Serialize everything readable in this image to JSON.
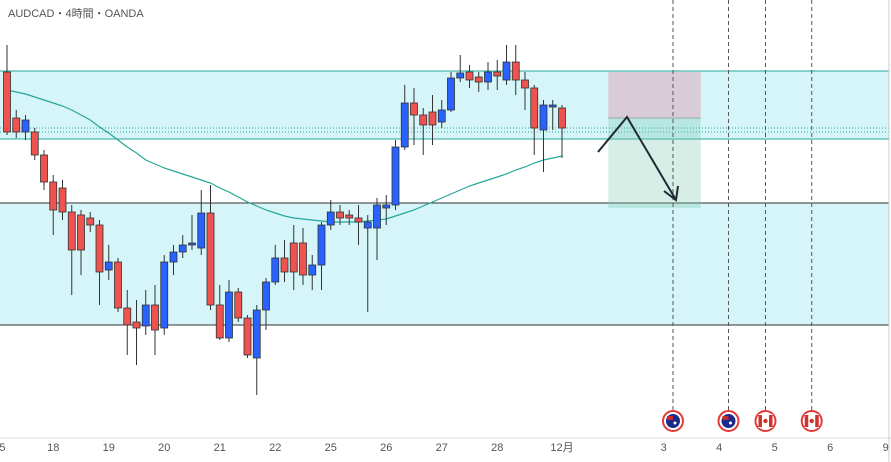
{
  "chart_data": {
    "type": "candlestick",
    "title": "AUDCAD・4時間・OANDA",
    "up_color": "#2962ff",
    "down_color": "#ef5350",
    "xlim": [
      -0.757,
      95.57
    ],
    "ylim": [
      0.886,
      0.93
    ],
    "xticks": [
      {
        "value": -0.5,
        "label": "5"
      },
      {
        "value": 5,
        "label": "18"
      },
      {
        "value": 11,
        "label": "19"
      },
      {
        "value": 17,
        "label": "20"
      },
      {
        "value": 23,
        "label": "21"
      },
      {
        "value": 29,
        "label": "22"
      },
      {
        "value": 35,
        "label": "25"
      },
      {
        "value": 41,
        "label": "26"
      },
      {
        "value": 47,
        "label": "27"
      },
      {
        "value": 53,
        "label": "28"
      },
      {
        "value": 60,
        "label": "12月"
      },
      {
        "value": 71,
        "label": "3"
      },
      {
        "value": 77,
        "label": "4"
      },
      {
        "value": 83,
        "label": "5"
      },
      {
        "value": 89,
        "label": "6"
      },
      {
        "value": 95,
        "label": "9"
      }
    ],
    "ohlc": [
      [
        0.9228,
        0.9255,
        0.9165,
        0.9168
      ],
      [
        0.9182,
        0.919,
        0.9162,
        0.9168
      ],
      [
        0.9168,
        0.9185,
        0.916,
        0.918
      ],
      [
        0.9168,
        0.9172,
        0.914,
        0.9145
      ],
      [
        0.9145,
        0.915,
        0.911,
        0.9118
      ],
      [
        0.9118,
        0.9125,
        0.9065,
        0.909
      ],
      [
        0.9112,
        0.912,
        0.908,
        0.9088
      ],
      [
        0.9088,
        0.9095,
        0.9005,
        0.905
      ],
      [
        0.9085,
        0.909,
        0.9025,
        0.905
      ],
      [
        0.9082,
        0.9088,
        0.9068,
        0.9075
      ],
      [
        0.9075,
        0.908,
        0.8995,
        0.9028
      ],
      [
        0.903,
        0.9055,
        0.902,
        0.9038
      ],
      [
        0.9038,
        0.9042,
        0.8988,
        0.8992
      ],
      [
        0.8992,
        0.901,
        0.8945,
        0.8975
      ],
      [
        0.8978,
        0.9,
        0.8935,
        0.8972
      ],
      [
        0.8974,
        0.901,
        0.8965,
        0.8995
      ],
      [
        0.8995,
        0.9015,
        0.8945,
        0.897
      ],
      [
        0.8972,
        0.9045,
        0.8965,
        0.9038
      ],
      [
        0.9038,
        0.9055,
        0.9025,
        0.9048
      ],
      [
        0.9048,
        0.9065,
        0.9042,
        0.9055
      ],
      [
        0.9055,
        0.9085,
        0.905,
        0.9057
      ],
      [
        0.9052,
        0.911,
        0.9045,
        0.9087
      ],
      [
        0.9087,
        0.9115,
        0.899,
        0.8995
      ],
      [
        0.8995,
        0.9015,
        0.896,
        0.8962
      ],
      [
        0.8962,
        0.902,
        0.8958,
        0.9008
      ],
      [
        0.9008,
        0.9012,
        0.8978,
        0.8982
      ],
      [
        0.8982,
        0.8985,
        0.8942,
        0.8945
      ],
      [
        0.8942,
        0.8995,
        0.8905,
        0.899
      ],
      [
        0.899,
        0.9022,
        0.897,
        0.9018
      ],
      [
        0.9018,
        0.9055,
        0.9015,
        0.9042
      ],
      [
        0.9042,
        0.906,
        0.9018,
        0.9028
      ],
      [
        0.9057,
        0.9075,
        0.901,
        0.9028
      ],
      [
        0.9057,
        0.9072,
        0.9015,
        0.9025
      ],
      [
        0.9025,
        0.9045,
        0.901,
        0.9035
      ],
      [
        0.9035,
        0.9078,
        0.901,
        0.9075
      ],
      [
        0.9075,
        0.91,
        0.907,
        0.9088
      ],
      [
        0.9088,
        0.9095,
        0.9075,
        0.9082
      ],
      [
        0.9085,
        0.909,
        0.9075,
        0.9082
      ],
      [
        0.9082,
        0.9095,
        0.9055,
        0.9078
      ],
      [
        0.9072,
        0.9085,
        0.8988,
        0.9078
      ],
      [
        0.9072,
        0.9102,
        0.904,
        0.9095
      ],
      [
        0.9092,
        0.9105,
        0.9075,
        0.9095
      ],
      [
        0.9095,
        0.916,
        0.909,
        0.9153
      ],
      [
        0.9153,
        0.9215,
        0.915,
        0.9197
      ],
      [
        0.9197,
        0.9212,
        0.9155,
        0.9185
      ],
      [
        0.9185,
        0.9192,
        0.9145,
        0.9175
      ],
      [
        0.9188,
        0.9205,
        0.9155,
        0.9175
      ],
      [
        0.9178,
        0.92,
        0.9172,
        0.919
      ],
      [
        0.919,
        0.9228,
        0.9188,
        0.9222
      ],
      [
        0.9222,
        0.9245,
        0.9218,
        0.9227
      ],
      [
        0.9228,
        0.9235,
        0.9212,
        0.922
      ],
      [
        0.9223,
        0.9228,
        0.9208,
        0.9218
      ],
      [
        0.9218,
        0.9238,
        0.921,
        0.9228
      ],
      [
        0.9228,
        0.924,
        0.921,
        0.9224
      ],
      [
        0.922,
        0.9255,
        0.9215,
        0.9238
      ],
      [
        0.9238,
        0.9255,
        0.9205,
        0.922
      ],
      [
        0.922,
        0.9228,
        0.919,
        0.9212
      ],
      [
        0.9212,
        0.9215,
        0.9145,
        0.9172
      ],
      [
        0.917,
        0.92,
        0.9128,
        0.9195
      ],
      [
        0.9193,
        0.92,
        0.917,
        0.9195
      ],
      [
        0.9192,
        0.9195,
        0.9142,
        0.9172
      ]
    ],
    "ma": {
      "color": "#26a69a",
      "values": [
        0.921,
        0.9208,
        0.9206,
        0.9203,
        0.92,
        0.9197,
        0.9194,
        0.919,
        0.9185,
        0.918,
        0.9173,
        0.9167,
        0.916,
        0.9153,
        0.9147,
        0.914,
        0.9136,
        0.9132,
        0.9129,
        0.9126,
        0.9123,
        0.912,
        0.9117,
        0.9112,
        0.9108,
        0.9103,
        0.9098,
        0.9094,
        0.909,
        0.9087,
        0.9084,
        0.9082,
        0.9081,
        0.908,
        0.9079,
        0.9078,
        0.9078,
        0.9078,
        0.9078,
        0.9079,
        0.908,
        0.9081,
        0.9084,
        0.9087,
        0.909,
        0.9094,
        0.9098,
        0.9102,
        0.9106,
        0.911,
        0.9114,
        0.9117,
        0.912,
        0.9123,
        0.9126,
        0.913,
        0.9133,
        0.9137,
        0.914,
        0.9142,
        0.9144
      ]
    },
    "zones": [
      {
        "top": 0.9229,
        "bottom": 0.9161,
        "fill": "#d5f5f9",
        "border": "#26a69a"
      },
      {
        "top": 0.9097,
        "bottom": 0.8975,
        "fill": "#d5f5f9",
        "border": "#333333"
      }
    ],
    "dotted_levels": [
      0.9172,
      0.9168
    ],
    "position": {
      "x": [
        65,
        75
      ],
      "stop": 0.9228,
      "entry": 0.9182,
      "target": 0.9092
    },
    "event_lines": [
      72,
      78,
      82,
      87
    ],
    "event_flags": [
      "au",
      "au",
      "ca",
      "ca"
    ]
  }
}
